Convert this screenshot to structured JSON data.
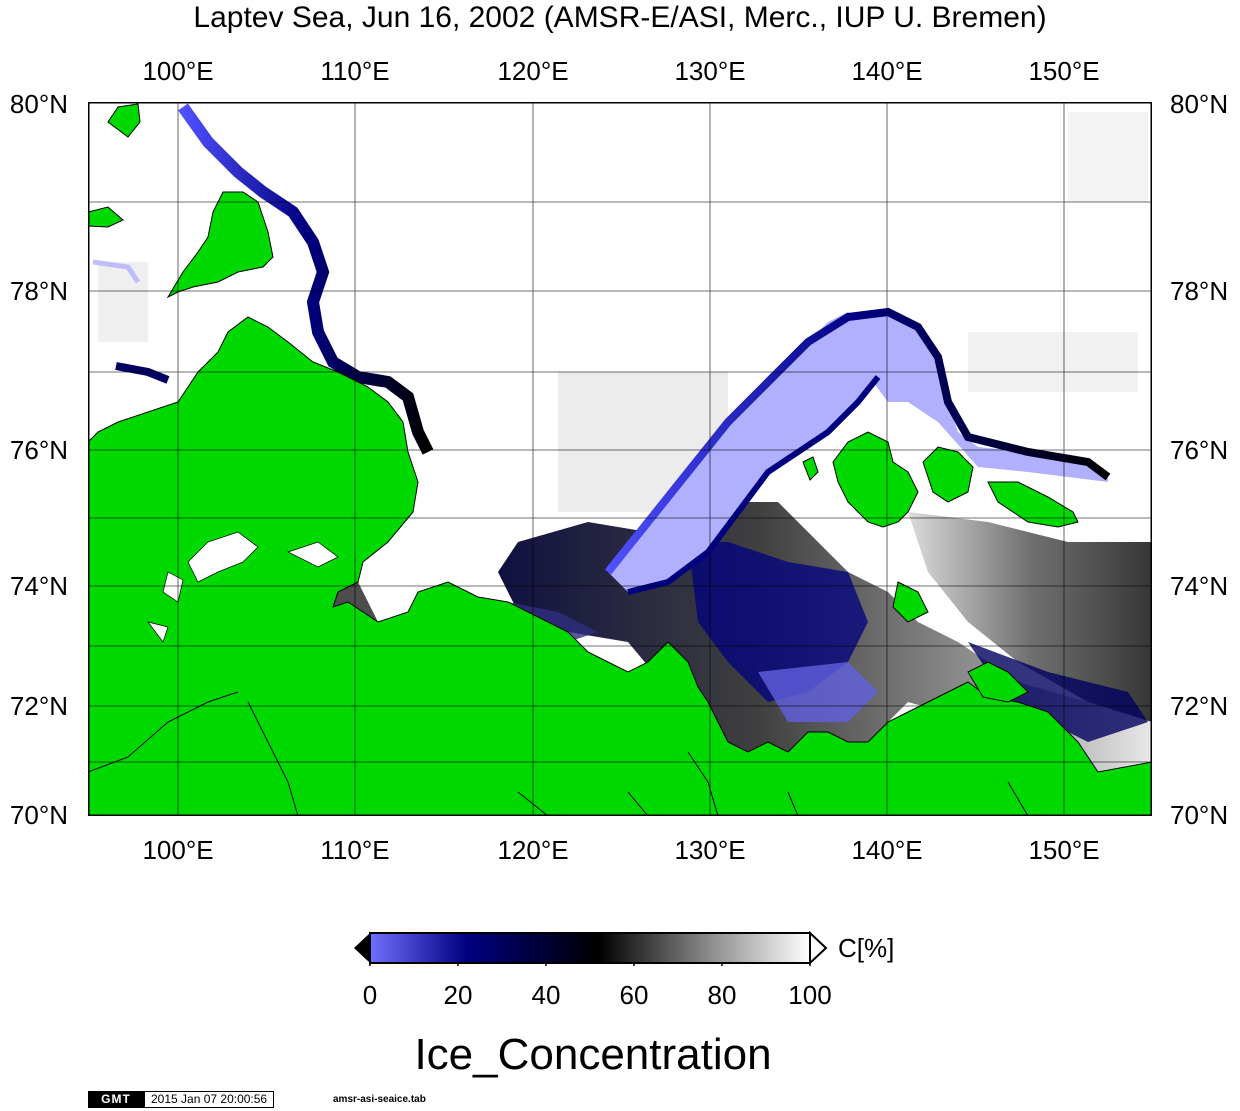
{
  "title": "Laptev Sea, Jun 16, 2002 (AMSR-E/ASI, Merc., IUP U. Bremen)",
  "map": {
    "lon_range": [
      95,
      155
    ],
    "lat_range": [
      70,
      80
    ],
    "projection": "Mercator",
    "lon_ticks": [
      "100°E",
      "110°E",
      "120°E",
      "130°E",
      "140°E",
      "150°E"
    ],
    "lat_ticks": [
      "80°N",
      "78°N",
      "76°N",
      "74°N",
      "72°N",
      "70°N"
    ],
    "land_color": "#00d900",
    "ocean_color": "#ffffff",
    "gridlines": true
  },
  "colorbar": {
    "ticks": [
      "0",
      "20",
      "40",
      "60",
      "80",
      "100"
    ],
    "unit": "C[%]",
    "title": "Ice_Concentration",
    "stops": [
      "#7070ff",
      "#000080",
      "#000000",
      "#808080",
      "#ffffff"
    ]
  },
  "footer": {
    "logo": "GMT",
    "timestamp": "2015 Jan 07 20:00:56",
    "file": "amsr-asi-seaice.tab"
  }
}
